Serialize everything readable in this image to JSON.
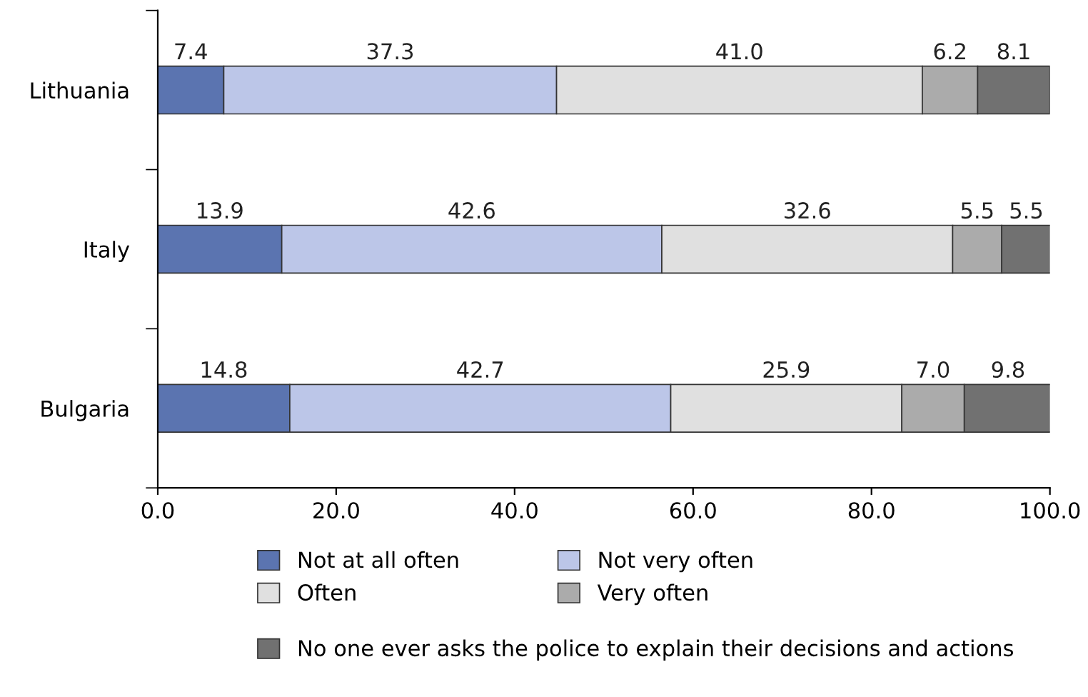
{
  "chart_data": {
    "type": "bar",
    "orientation": "horizontal",
    "stacked": true,
    "categories": [
      "Lithuania",
      "Italy",
      "Bulgaria"
    ],
    "series": [
      {
        "name": "Not at all often",
        "color": "#5b74b0",
        "values": [
          7.4,
          13.9,
          14.8
        ],
        "value_labels": [
          "7.4",
          "13.9",
          "14.8"
        ]
      },
      {
        "name": "Not very often",
        "color": "#bcc6e8",
        "values": [
          37.3,
          42.6,
          42.7
        ],
        "value_labels": [
          "37.3",
          "42.6",
          "42.7"
        ]
      },
      {
        "name": "Often",
        "color": "#e0e0e0",
        "values": [
          41.0,
          32.6,
          25.9
        ],
        "value_labels": [
          "41.0",
          "32.6",
          "25.9"
        ]
      },
      {
        "name": "Very often",
        "color": "#ababab",
        "values": [
          6.2,
          5.5,
          7.0
        ],
        "value_labels": [
          "6.2",
          "5.5",
          "7.0"
        ]
      },
      {
        "name": "No one ever asks the police to explain their decisions and actions",
        "color": "#717171",
        "values": [
          8.1,
          5.5,
          9.8
        ],
        "value_labels": [
          "8.1",
          "5.5",
          "9.8"
        ]
      }
    ],
    "xlim": [
      0,
      100
    ],
    "xticks": [
      {
        "value": 0,
        "label": "0.0"
      },
      {
        "value": 20,
        "label": "20.0"
      },
      {
        "value": 40,
        "label": "40.0"
      },
      {
        "value": 60,
        "label": "60.0"
      },
      {
        "value": 80,
        "label": "80.0"
      },
      {
        "value": 100,
        "label": "100.0"
      }
    ],
    "grid": false,
    "legend": "bottom"
  }
}
